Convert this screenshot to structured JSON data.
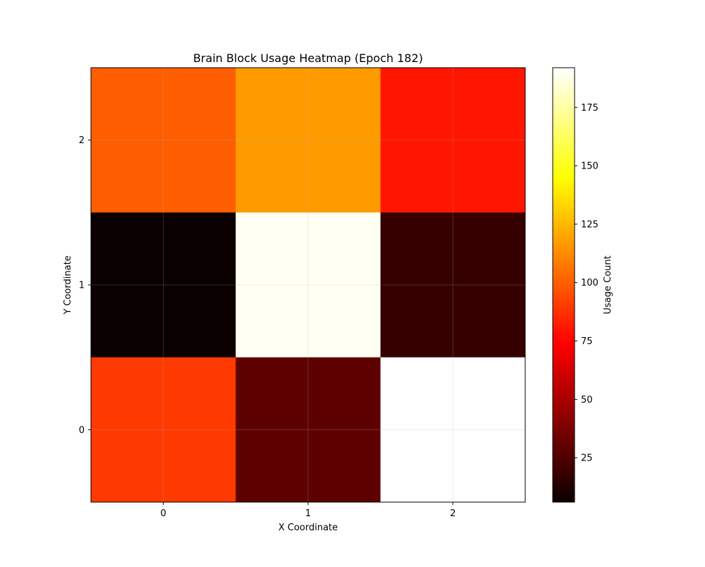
{
  "chart_data": {
    "type": "heatmap",
    "title": "Brain Block Usage Heatmap (Epoch 182)",
    "xlabel": "X Coordinate",
    "ylabel": "Y Coordinate",
    "x_ticks": [
      "0",
      "1",
      "2"
    ],
    "y_ticks": [
      "0",
      "1",
      "2"
    ],
    "grid": true,
    "colormap": "hot",
    "cells": [
      {
        "x": 0,
        "y": 2,
        "value": 100
      },
      {
        "x": 1,
        "y": 2,
        "value": 117
      },
      {
        "x": 2,
        "y": 2,
        "value": 80
      },
      {
        "x": 0,
        "y": 1,
        "value": 6
      },
      {
        "x": 1,
        "y": 1,
        "value": 190
      },
      {
        "x": 2,
        "y": 1,
        "value": 18
      },
      {
        "x": 0,
        "y": 0,
        "value": 90
      },
      {
        "x": 1,
        "y": 0,
        "value": 29
      },
      {
        "x": 2,
        "y": 0,
        "value": 192
      }
    ],
    "colorbar": {
      "label": "Usage Count",
      "min": 6,
      "max": 192,
      "ticks": [
        "25",
        "50",
        "75",
        "100",
        "125",
        "150",
        "175"
      ]
    }
  }
}
